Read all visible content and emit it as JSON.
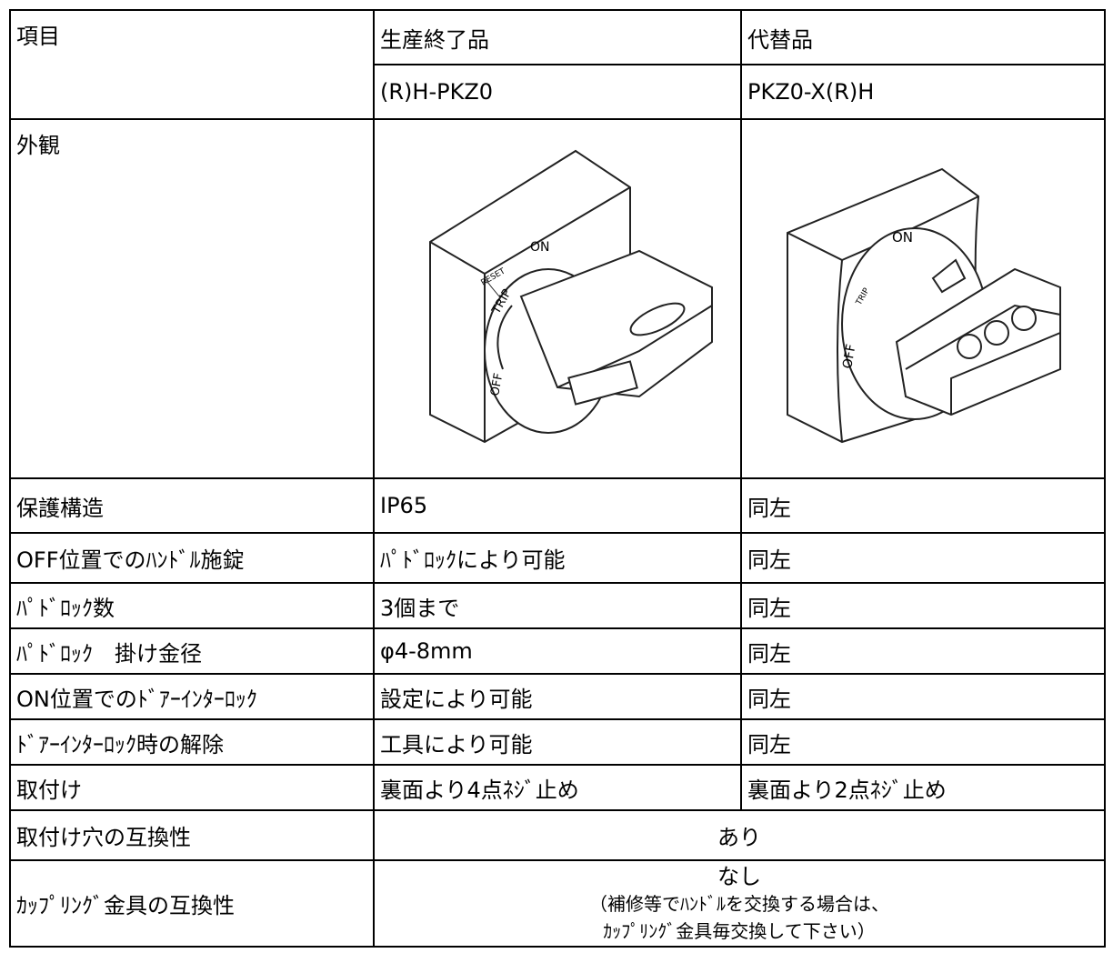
{
  "table": {
    "header": [
      [
        "項目",
        "生産終了品",
        "代替品"
      ],
      [
        "(R)H-PKZ0",
        "PKZ0-X(R)H"
      ]
    ],
    "appearance": {
      "label": "外観",
      "images": [
        {
          "labels": [
            "ON",
            "RESET",
            "TRIP",
            "OFF"
          ]
        },
        {
          "labels": [
            "ON",
            "TRIP",
            "OFF"
          ]
        }
      ]
    },
    "rows": [
      [
        "保護構造",
        "IP65",
        "同左"
      ],
      [
        "OFF位置でのﾊﾝﾄﾞﾙ施錠",
        "ﾊﾟﾄﾞﾛｯｸにより可能",
        "同左"
      ],
      [
        "ﾊﾟﾄﾞﾛｯｸ数",
        "3個まで",
        "同左"
      ],
      [
        "ﾊﾟﾄﾞﾛｯｸ　掛け金径",
        "φ4-8mm",
        "同左"
      ],
      [
        "ON位置でのﾄﾞｱｰｲﾝﾀｰﾛｯｸ",
        "設定により可能",
        "同左"
      ],
      [
        "ﾄﾞｱｰｲﾝﾀｰﾛｯｸ時の解除",
        "工具により可能",
        "同左"
      ],
      [
        "取付け",
        "裏面より4点ﾈｼﾞ止め",
        "裏面より2点ﾈｼﾞ止め"
      ],
      [
        "取付け穴の互換性",
        "あり"
      ],
      [
        "ｶｯﾌﾟﾘﾝｸﾞ金具の互換性",
        [
          "なし",
          "（補修等でﾊﾝﾄﾞﾙを交換する場合は、",
          "ｶｯﾌﾟﾘﾝｸﾞ金具毎交換して下さい）"
        ]
      ]
    ]
  }
}
